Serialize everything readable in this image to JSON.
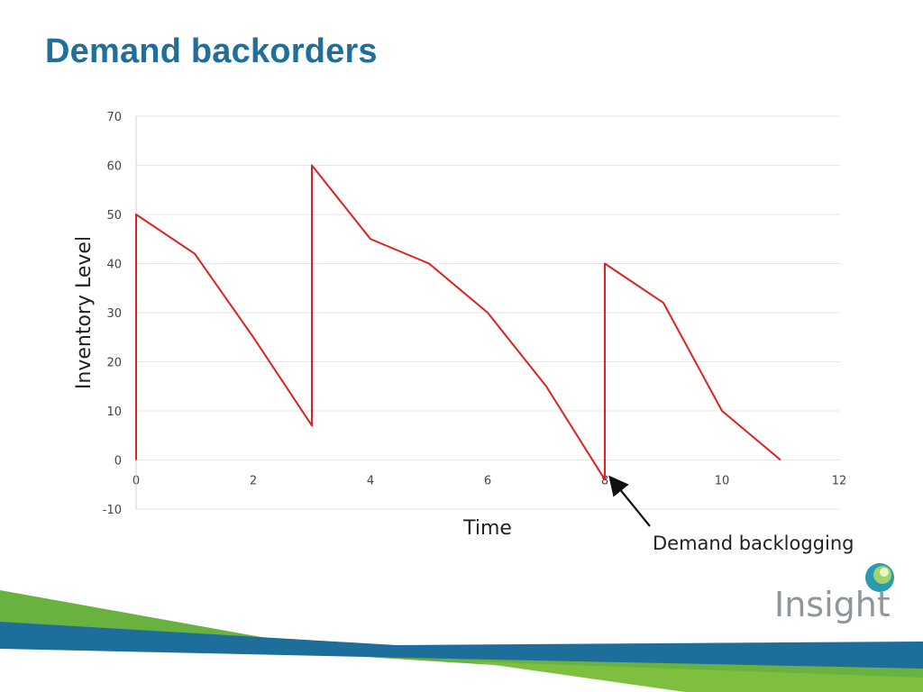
{
  "slide": {
    "title": "Demand backorders",
    "annotation": "Demand backlogging",
    "logo_text": "Insight"
  },
  "colors": {
    "title": "#1f6f9a",
    "series": "#e02020",
    "grid": "#e6e6e6",
    "band_green": "#6ab23f",
    "band_blue": "#1e6e9c"
  },
  "chart_data": {
    "type": "line",
    "title": "",
    "xlabel": "Time",
    "ylabel": "Inventory Level",
    "xlim": [
      0,
      12
    ],
    "ylim": [
      -10,
      70
    ],
    "xticks": [
      0,
      2,
      4,
      6,
      8,
      10,
      12
    ],
    "yticks": [
      -10,
      0,
      10,
      20,
      30,
      40,
      50,
      60,
      70
    ],
    "grid": "horizontal",
    "legend": "none",
    "series": [
      {
        "x": [
          0,
          0,
          1,
          2,
          3,
          3,
          4,
          5,
          6,
          7,
          8,
          8,
          9,
          10,
          11
        ],
        "y": [
          0,
          50,
          42,
          25,
          7,
          60,
          45,
          40,
          30,
          15,
          -4,
          40,
          32,
          10,
          0
        ]
      }
    ],
    "annotations": [
      {
        "text": "Demand backlogging",
        "x": 8,
        "y": -4
      }
    ]
  }
}
